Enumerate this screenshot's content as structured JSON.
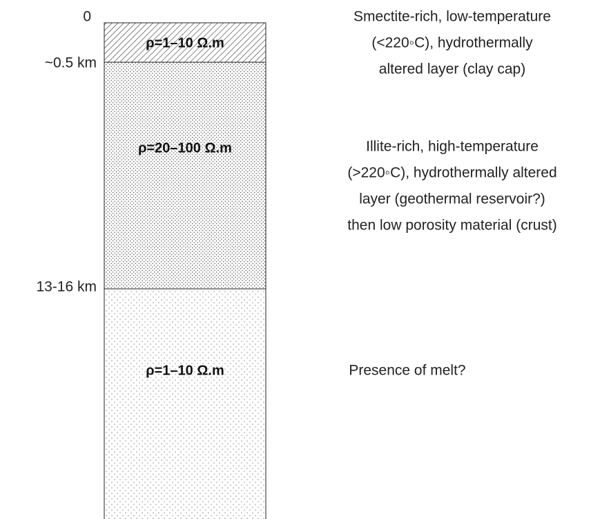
{
  "depth_labels": [
    "0",
    "~0.5 km",
    "13-16 km"
  ],
  "layers": [
    {
      "resistivity": "ρ=1–10 Ω.m",
      "description": [
        "Smectite-rich, low-temperature",
        "(<220◦C), hydrothermally",
        "altered layer (clay cap)"
      ]
    },
    {
      "resistivity": "ρ=20–100 Ω.m",
      "description": [
        "Illite-rich, high-temperature",
        "(>220◦C), hydrothermally altered",
        "layer (geothermal reservoir?)",
        "then low porosity material (crust)"
      ]
    },
    {
      "resistivity": "ρ=1–10 Ω.m",
      "description": [
        "Presence of melt?"
      ]
    }
  ]
}
